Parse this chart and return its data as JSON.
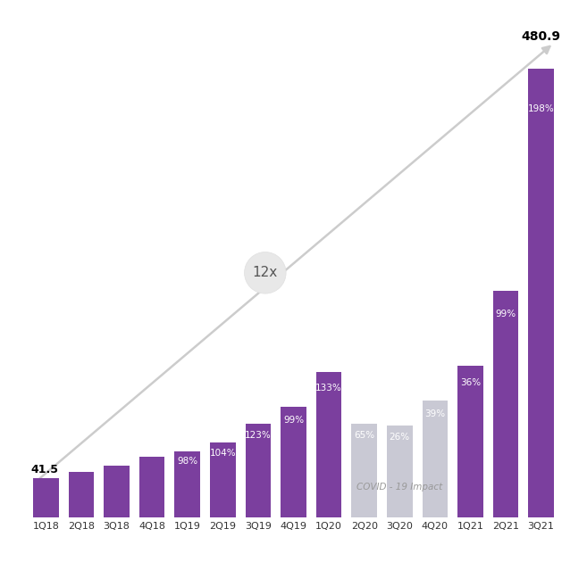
{
  "categories": [
    "1Q18",
    "2Q18",
    "3Q18",
    "4Q18",
    "1Q19",
    "2Q19",
    "3Q19",
    "4Q19",
    "1Q20",
    "2Q20",
    "3Q20",
    "4Q20",
    "1Q21",
    "2Q21",
    "3Q21"
  ],
  "values": [
    41.5,
    48,
    55,
    65,
    70,
    80,
    100,
    118,
    155,
    100,
    98,
    125,
    162,
    242,
    480.9
  ],
  "bar_colors": [
    "#7b3f9e",
    "#7b3f9e",
    "#7b3f9e",
    "#7b3f9e",
    "#7b3f9e",
    "#7b3f9e",
    "#7b3f9e",
    "#7b3f9e",
    "#7b3f9e",
    "#c9c9d4",
    "#c9c9d4",
    "#c9c9d4",
    "#7b3f9e",
    "#7b3f9e",
    "#7b3f9e"
  ],
  "pct_labels": [
    "",
    "",
    "",
    "",
    "98%",
    "104%",
    "123%",
    "99%",
    "133%",
    "65%",
    "26%",
    "39%",
    "36%",
    "99%",
    "198%"
  ],
  "first_label": "41.5",
  "last_label": "480.9",
  "covid_label": "COVID - 19 Impact",
  "annotation_12x": "12x",
  "purple_color": "#7b3f9e",
  "gray_color": "#c9c9d4",
  "arrow_color": "#cccccc",
  "background_color": "#ffffff",
  "figsize": [
    6.57,
    6.3
  ],
  "dpi": 100,
  "ylim_max": 530
}
